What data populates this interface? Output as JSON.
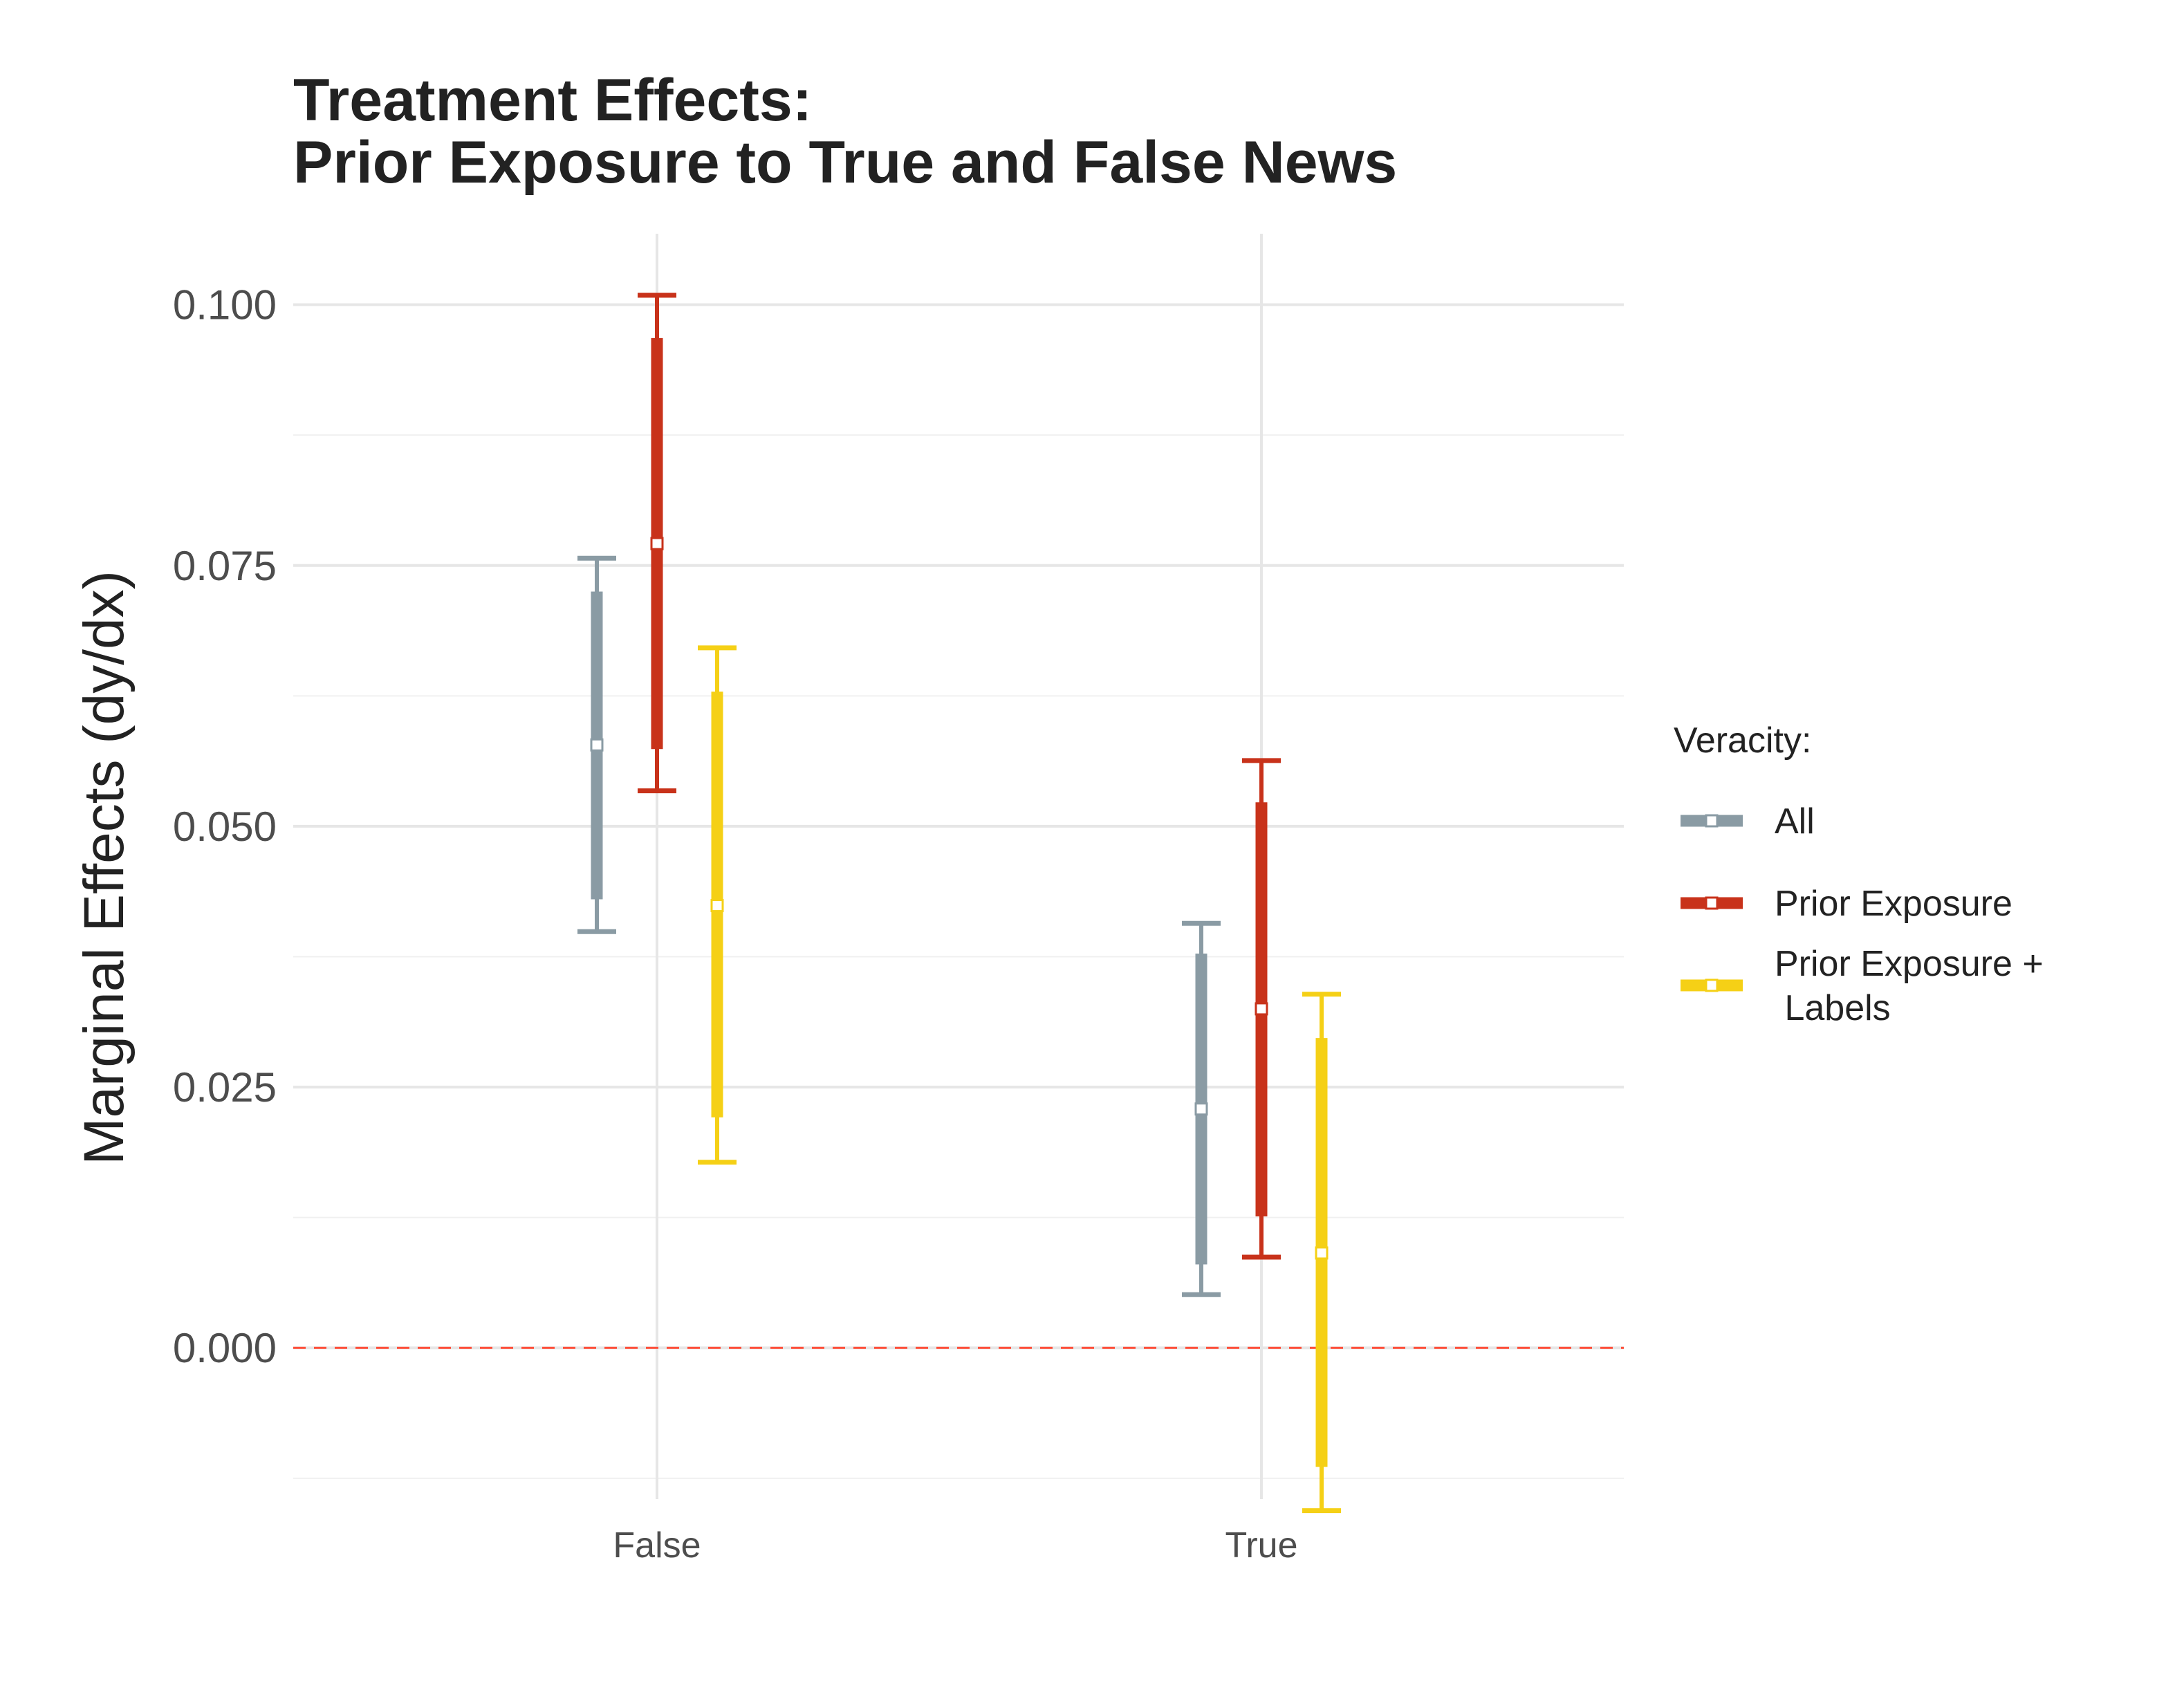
{
  "chart_data": {
    "type": "errorbar",
    "title": [
      "Treatment Effects:",
      "Prior Exposure to True and False News"
    ],
    "xlabel": "",
    "ylabel": "Marginal Effects (dy/dx)",
    "categories": [
      "False",
      "True"
    ],
    "ylim": [
      -0.0145,
      0.1068
    ],
    "yticks": [
      "0.000",
      "0.025",
      "0.050",
      "0.075",
      "0.100"
    ],
    "ytick_values": [
      0,
      0.025,
      0.05,
      0.075,
      0.1
    ],
    "reference_line": {
      "y": 0,
      "style": "dashed",
      "color": "#ff4d38"
    },
    "grid": true,
    "legend": {
      "title": "Veracity:",
      "position": "right"
    },
    "series": [
      {
        "name": "All",
        "color": "#8a9ba4",
        "estimate": [
          0.0578,
          0.0229
        ],
        "ci_inner": [
          [
            0.043,
            0.0725
          ],
          [
            0.008,
            0.0378
          ]
        ],
        "ci_outer": [
          [
            0.0399,
            0.0757
          ],
          [
            0.0051,
            0.0407
          ]
        ]
      },
      {
        "name": "Prior Exposure",
        "color": "#c8321a",
        "estimate": [
          0.0771,
          0.0325
        ],
        "ci_inner": [
          [
            0.0574,
            0.0968
          ],
          [
            0.0126,
            0.0523
          ]
        ],
        "ci_outer": [
          [
            0.0534,
            0.1009
          ],
          [
            0.0087,
            0.0563
          ]
        ]
      },
      {
        "name": "Prior Exposure +\n Labels",
        "color": "#f5d016",
        "estimate": [
          0.0424,
          0.0091
        ],
        "ci_inner": [
          [
            0.0221,
            0.0629
          ],
          [
            -0.0114,
            0.0297
          ]
        ],
        "ci_outer": [
          [
            0.0178,
            0.0671
          ],
          [
            -0.0156,
            0.0339
          ]
        ]
      }
    ]
  }
}
